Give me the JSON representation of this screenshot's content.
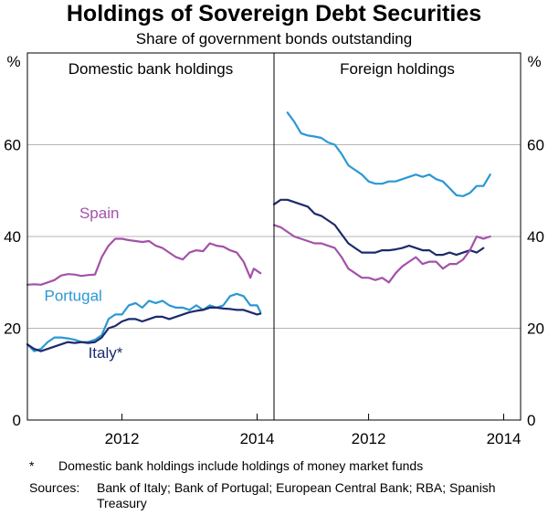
{
  "chart_data": {
    "type": "line",
    "title": "Holdings of Sovereign Debt Securities",
    "subtitle": "Share of government bonds outstanding",
    "yunit_left": "%",
    "yunit_right": "%",
    "ylim": [
      0,
      80
    ],
    "yticks": [
      0,
      20,
      40,
      60
    ],
    "gridlines": [
      20,
      40,
      60
    ],
    "panels": [
      {
        "title": "Domestic bank holdings",
        "xlim": [
          2010.6,
          2014.25
        ],
        "xticks": [
          {
            "value": 2012,
            "label": "2012"
          },
          {
            "value": 2014,
            "label": "2014"
          }
        ],
        "series": [
          {
            "name": "Spain",
            "color": "#a352a8",
            "label_at": {
              "x": 2011.37,
              "y": 44
            },
            "label_anchor": "start",
            "points": [
              [
                2010.6,
                29.5
              ],
              [
                2010.7,
                29.6
              ],
              [
                2010.8,
                29.5
              ],
              [
                2010.9,
                30.0
              ],
              [
                2011.0,
                30.5
              ],
              [
                2011.1,
                31.5
              ],
              [
                2011.2,
                31.8
              ],
              [
                2011.3,
                31.7
              ],
              [
                2011.4,
                31.4
              ],
              [
                2011.5,
                31.6
              ],
              [
                2011.6,
                31.7
              ],
              [
                2011.7,
                35.5
              ],
              [
                2011.8,
                38.0
              ],
              [
                2011.9,
                39.5
              ],
              [
                2012.0,
                39.5
              ],
              [
                2012.1,
                39.2
              ],
              [
                2012.2,
                39.0
              ],
              [
                2012.3,
                38.8
              ],
              [
                2012.4,
                39.0
              ],
              [
                2012.5,
                38.0
              ],
              [
                2012.6,
                37.5
              ],
              [
                2012.7,
                36.5
              ],
              [
                2012.8,
                35.5
              ],
              [
                2012.9,
                35.0
              ],
              [
                2013.0,
                36.5
              ],
              [
                2013.1,
                37.0
              ],
              [
                2013.2,
                36.8
              ],
              [
                2013.3,
                38.5
              ],
              [
                2013.4,
                38.0
              ],
              [
                2013.5,
                37.8
              ],
              [
                2013.6,
                37.0
              ],
              [
                2013.7,
                36.5
              ],
              [
                2013.8,
                34.5
              ],
              [
                2013.9,
                31.0
              ],
              [
                2013.95,
                33.0
              ],
              [
                2014.0,
                32.5
              ],
              [
                2014.05,
                32.0
              ]
            ]
          },
          {
            "name": "Portugal",
            "color": "#2b98d4",
            "label_at": {
              "x": 2010.85,
              "y": 26
            },
            "label_anchor": "start",
            "points": [
              [
                2010.6,
                16.5
              ],
              [
                2010.7,
                15.0
              ],
              [
                2010.8,
                15.5
              ],
              [
                2010.9,
                17.0
              ],
              [
                2011.0,
                18.0
              ],
              [
                2011.1,
                18.0
              ],
              [
                2011.2,
                17.8
              ],
              [
                2011.3,
                17.5
              ],
              [
                2011.4,
                17.0
              ],
              [
                2011.5,
                17.0
              ],
              [
                2011.6,
                17.5
              ],
              [
                2011.7,
                18.5
              ],
              [
                2011.8,
                22.0
              ],
              [
                2011.9,
                23.0
              ],
              [
                2012.0,
                23.0
              ],
              [
                2012.1,
                25.0
              ],
              [
                2012.2,
                25.5
              ],
              [
                2012.3,
                24.5
              ],
              [
                2012.4,
                26.0
              ],
              [
                2012.5,
                25.5
              ],
              [
                2012.6,
                26.0
              ],
              [
                2012.7,
                25.0
              ],
              [
                2012.8,
                24.5
              ],
              [
                2012.9,
                24.5
              ],
              [
                2013.0,
                24.0
              ],
              [
                2013.1,
                25.0
              ],
              [
                2013.2,
                24.0
              ],
              [
                2013.3,
                25.0
              ],
              [
                2013.4,
                24.5
              ],
              [
                2013.5,
                25.0
              ],
              [
                2013.6,
                27.0
              ],
              [
                2013.7,
                27.5
              ],
              [
                2013.8,
                27.0
              ],
              [
                2013.9,
                25.0
              ],
              [
                2014.0,
                25.0
              ],
              [
                2014.05,
                23.5
              ]
            ]
          },
          {
            "name": "Italy*",
            "color": "#1d2a6c",
            "label_at": {
              "x": 2011.5,
              "y": 13.5
            },
            "label_anchor": "start",
            "points": [
              [
                2010.6,
                16.5
              ],
              [
                2010.7,
                15.5
              ],
              [
                2010.8,
                15.0
              ],
              [
                2010.9,
                15.5
              ],
              [
                2011.0,
                16.0
              ],
              [
                2011.1,
                16.5
              ],
              [
                2011.2,
                17.0
              ],
              [
                2011.3,
                16.8
              ],
              [
                2011.4,
                17.0
              ],
              [
                2011.5,
                16.8
              ],
              [
                2011.6,
                17.0
              ],
              [
                2011.7,
                18.0
              ],
              [
                2011.8,
                20.0
              ],
              [
                2011.9,
                20.5
              ],
              [
                2012.0,
                21.5
              ],
              [
                2012.1,
                22.0
              ],
              [
                2012.2,
                22.0
              ],
              [
                2012.3,
                21.5
              ],
              [
                2012.4,
                22.0
              ],
              [
                2012.5,
                22.5
              ],
              [
                2012.6,
                22.5
              ],
              [
                2012.7,
                22.0
              ],
              [
                2012.8,
                22.5
              ],
              [
                2012.9,
                23.0
              ],
              [
                2013.0,
                23.5
              ],
              [
                2013.1,
                23.8
              ],
              [
                2013.2,
                24.0
              ],
              [
                2013.3,
                24.5
              ],
              [
                2013.4,
                24.5
              ],
              [
                2013.5,
                24.3
              ],
              [
                2013.6,
                24.2
              ],
              [
                2013.7,
                24.0
              ],
              [
                2013.8,
                24.0
              ],
              [
                2013.9,
                23.5
              ],
              [
                2014.0,
                23.0
              ],
              [
                2014.05,
                23.2
              ]
            ]
          }
        ]
      },
      {
        "title": "Foreign holdings",
        "xlim": [
          2010.6,
          2014.25
        ],
        "xticks": [
          {
            "value": 2012,
            "label": "2012"
          },
          {
            "value": 2014,
            "label": "2014"
          }
        ],
        "series": [
          {
            "name": "Portugal",
            "color": "#2b98d4",
            "points": [
              [
                2010.8,
                67.0
              ],
              [
                2010.9,
                65.0
              ],
              [
                2011.0,
                62.5
              ],
              [
                2011.1,
                62.0
              ],
              [
                2011.2,
                61.8
              ],
              [
                2011.3,
                61.5
              ],
              [
                2011.4,
                60.5
              ],
              [
                2011.5,
                60.0
              ],
              [
                2011.6,
                58.0
              ],
              [
                2011.7,
                55.5
              ],
              [
                2011.8,
                54.5
              ],
              [
                2011.9,
                53.5
              ],
              [
                2012.0,
                52.0
              ],
              [
                2012.1,
                51.5
              ],
              [
                2012.2,
                51.5
              ],
              [
                2012.3,
                52.0
              ],
              [
                2012.4,
                52.0
              ],
              [
                2012.5,
                52.5
              ],
              [
                2012.6,
                53.0
              ],
              [
                2012.7,
                53.5
              ],
              [
                2012.8,
                53.0
              ],
              [
                2012.9,
                53.5
              ],
              [
                2013.0,
                52.5
              ],
              [
                2013.1,
                52.0
              ],
              [
                2013.2,
                50.5
              ],
              [
                2013.3,
                49.0
              ],
              [
                2013.4,
                48.8
              ],
              [
                2013.5,
                49.5
              ],
              [
                2013.6,
                51.0
              ],
              [
                2013.7,
                51.0
              ],
              [
                2013.8,
                53.5
              ]
            ]
          },
          {
            "name": "Italy*",
            "color": "#1d2a6c",
            "points": [
              [
                2010.6,
                47.0
              ],
              [
                2010.7,
                48.0
              ],
              [
                2010.8,
                48.0
              ],
              [
                2010.9,
                47.5
              ],
              [
                2011.0,
                47.0
              ],
              [
                2011.1,
                46.5
              ],
              [
                2011.2,
                45.0
              ],
              [
                2011.3,
                44.5
              ],
              [
                2011.4,
                43.5
              ],
              [
                2011.5,
                42.5
              ],
              [
                2011.6,
                40.5
              ],
              [
                2011.7,
                38.5
              ],
              [
                2011.8,
                37.5
              ],
              [
                2011.9,
                36.5
              ],
              [
                2012.0,
                36.5
              ],
              [
                2012.1,
                36.5
              ],
              [
                2012.2,
                37.0
              ],
              [
                2012.3,
                37.0
              ],
              [
                2012.4,
                37.2
              ],
              [
                2012.5,
                37.5
              ],
              [
                2012.6,
                38.0
              ],
              [
                2012.7,
                37.5
              ],
              [
                2012.8,
                37.0
              ],
              [
                2012.9,
                37.0
              ],
              [
                2013.0,
                36.0
              ],
              [
                2013.1,
                36.0
              ],
              [
                2013.2,
                36.5
              ],
              [
                2013.3,
                36.0
              ],
              [
                2013.4,
                36.5
              ],
              [
                2013.5,
                37.0
              ],
              [
                2013.6,
                36.5
              ],
              [
                2013.7,
                37.5
              ]
            ]
          },
          {
            "name": "Spain",
            "color": "#a352a8",
            "points": [
              [
                2010.6,
                42.5
              ],
              [
                2010.7,
                42.0
              ],
              [
                2010.8,
                41.0
              ],
              [
                2010.9,
                40.0
              ],
              [
                2011.0,
                39.5
              ],
              [
                2011.1,
                39.0
              ],
              [
                2011.2,
                38.5
              ],
              [
                2011.3,
                38.5
              ],
              [
                2011.4,
                38.0
              ],
              [
                2011.5,
                37.5
              ],
              [
                2011.6,
                35.5
              ],
              [
                2011.7,
                33.0
              ],
              [
                2011.8,
                32.0
              ],
              [
                2011.9,
                31.0
              ],
              [
                2012.0,
                31.0
              ],
              [
                2012.1,
                30.5
              ],
              [
                2012.2,
                31.0
              ],
              [
                2012.3,
                30.0
              ],
              [
                2012.4,
                32.0
              ],
              [
                2012.5,
                33.5
              ],
              [
                2012.6,
                34.5
              ],
              [
                2012.7,
                35.5
              ],
              [
                2012.8,
                34.0
              ],
              [
                2012.9,
                34.5
              ],
              [
                2013.0,
                34.5
              ],
              [
                2013.1,
                33.0
              ],
              [
                2013.2,
                34.0
              ],
              [
                2013.3,
                34.0
              ],
              [
                2013.4,
                35.0
              ],
              [
                2013.5,
                37.0
              ],
              [
                2013.6,
                40.0
              ],
              [
                2013.7,
                39.5
              ],
              [
                2013.8,
                40.0
              ]
            ]
          }
        ]
      }
    ]
  },
  "footnote": {
    "mark": "*",
    "text": "Domestic bank holdings include holdings of money market funds"
  },
  "sources": {
    "label": "Sources:",
    "text": "Bank of Italy; Bank of Portugal; European Central Bank; RBA; Spanish Treasury"
  }
}
